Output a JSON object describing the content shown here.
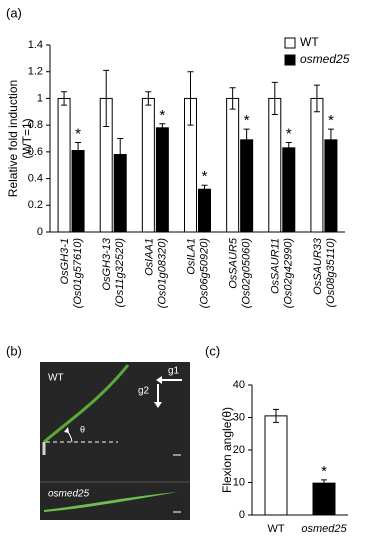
{
  "chart_data": [
    {
      "type": "bar",
      "panel": "(a)",
      "ylabel": [
        "Relative fold induction",
        "(WT=1)"
      ],
      "categories": [
        "OsGH3-1",
        "OsGH3-13",
        "OsIAA1",
        "OsILA1",
        "OsSAUR5",
        "OsSAUR11",
        "OsSAUR33"
      ],
      "category_ids": [
        "(Os01g57610)",
        "(Os11g32520)",
        "(Os01g08320)",
        "(Os06g50920)",
        "(Os02g05060)",
        "(Os02g42990)",
        "(Os08g35110)"
      ],
      "series": [
        {
          "name": "WT",
          "color": "#ffffff",
          "values": [
            1,
            1,
            1,
            1,
            1,
            1,
            1
          ],
          "errors": [
            0.05,
            0.21,
            0.05,
            0.2,
            0.08,
            0.12,
            0.1
          ]
        },
        {
          "name": "osmed25",
          "color": "#000000",
          "values": [
            0.61,
            0.58,
            0.78,
            0.32,
            0.69,
            0.63,
            0.69
          ],
          "errors": [
            0.06,
            0.12,
            0.03,
            0.03,
            0.08,
            0.04,
            0.08
          ]
        }
      ],
      "significance": [
        "*",
        null,
        "*",
        "*",
        "*",
        "*",
        "*"
      ],
      "ylim": [
        0,
        1.4
      ],
      "yticks": [
        0,
        0.2,
        0.4,
        0.6,
        0.8,
        1,
        1.2,
        1.4
      ],
      "legend": "top-right"
    },
    {
      "type": "bar",
      "panel": "(c)",
      "ylabel": "Flexion angle(θ)",
      "categories": [
        "WT",
        "osmed25"
      ],
      "values": [
        30.5,
        9.8
      ],
      "errors": [
        2,
        1
      ],
      "colors": [
        "#ffffff",
        "#000000"
      ],
      "significance": [
        null,
        "*"
      ],
      "ylim": [
        0,
        40
      ],
      "yticks": [
        0,
        10,
        20,
        30,
        40
      ]
    }
  ],
  "photo": {
    "panel": "(b)",
    "top_label": "WT",
    "bottom_label": "osmed25",
    "g1": "g1",
    "g2": "g2",
    "theta": "θ"
  }
}
